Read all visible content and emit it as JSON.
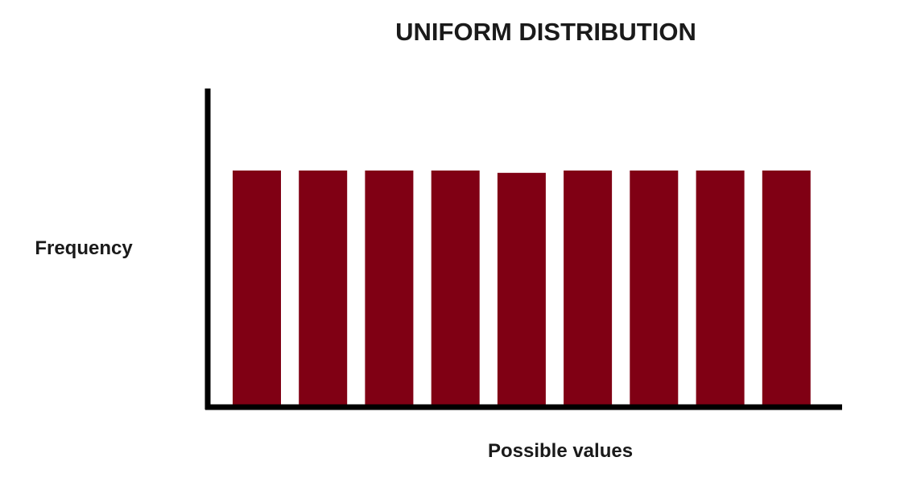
{
  "chart_data": {
    "type": "bar",
    "title": "UNIFORM DISTRIBUTION",
    "xlabel": "Possible values",
    "ylabel": "Frequency",
    "categories": [
      "",
      "",
      "",
      "",
      "",
      "",
      "",
      "",
      ""
    ],
    "values": [
      1,
      1,
      1,
      1,
      0.99,
      1,
      1,
      1,
      1
    ],
    "ylim": [
      0,
      1.35
    ],
    "grid": false,
    "legend": "none",
    "bar_color": "#800014",
    "axis_color": "#000000"
  }
}
